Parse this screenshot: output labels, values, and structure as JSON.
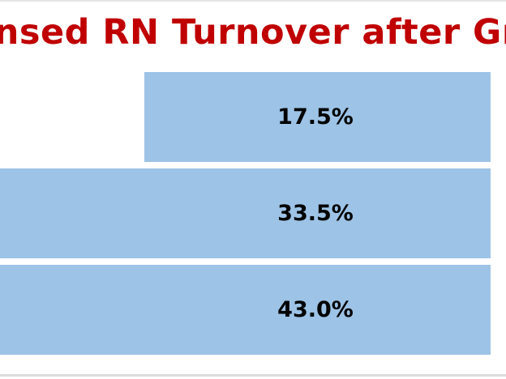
{
  "slide": {
    "title": "Licensed RN Turnover after Graduation",
    "title_color": "#c00000",
    "bar_color": "#9dc3e6"
  },
  "chart_data": {
    "type": "bar",
    "orientation": "horizontal",
    "title": "",
    "xlabel": "",
    "ylabel": "",
    "series": [
      {
        "values": [
          17.5,
          33.5,
          43.0
        ]
      }
    ],
    "data_labels": [
      "17.5%",
      "33.5%",
      "43.0%"
    ],
    "grid": false
  }
}
